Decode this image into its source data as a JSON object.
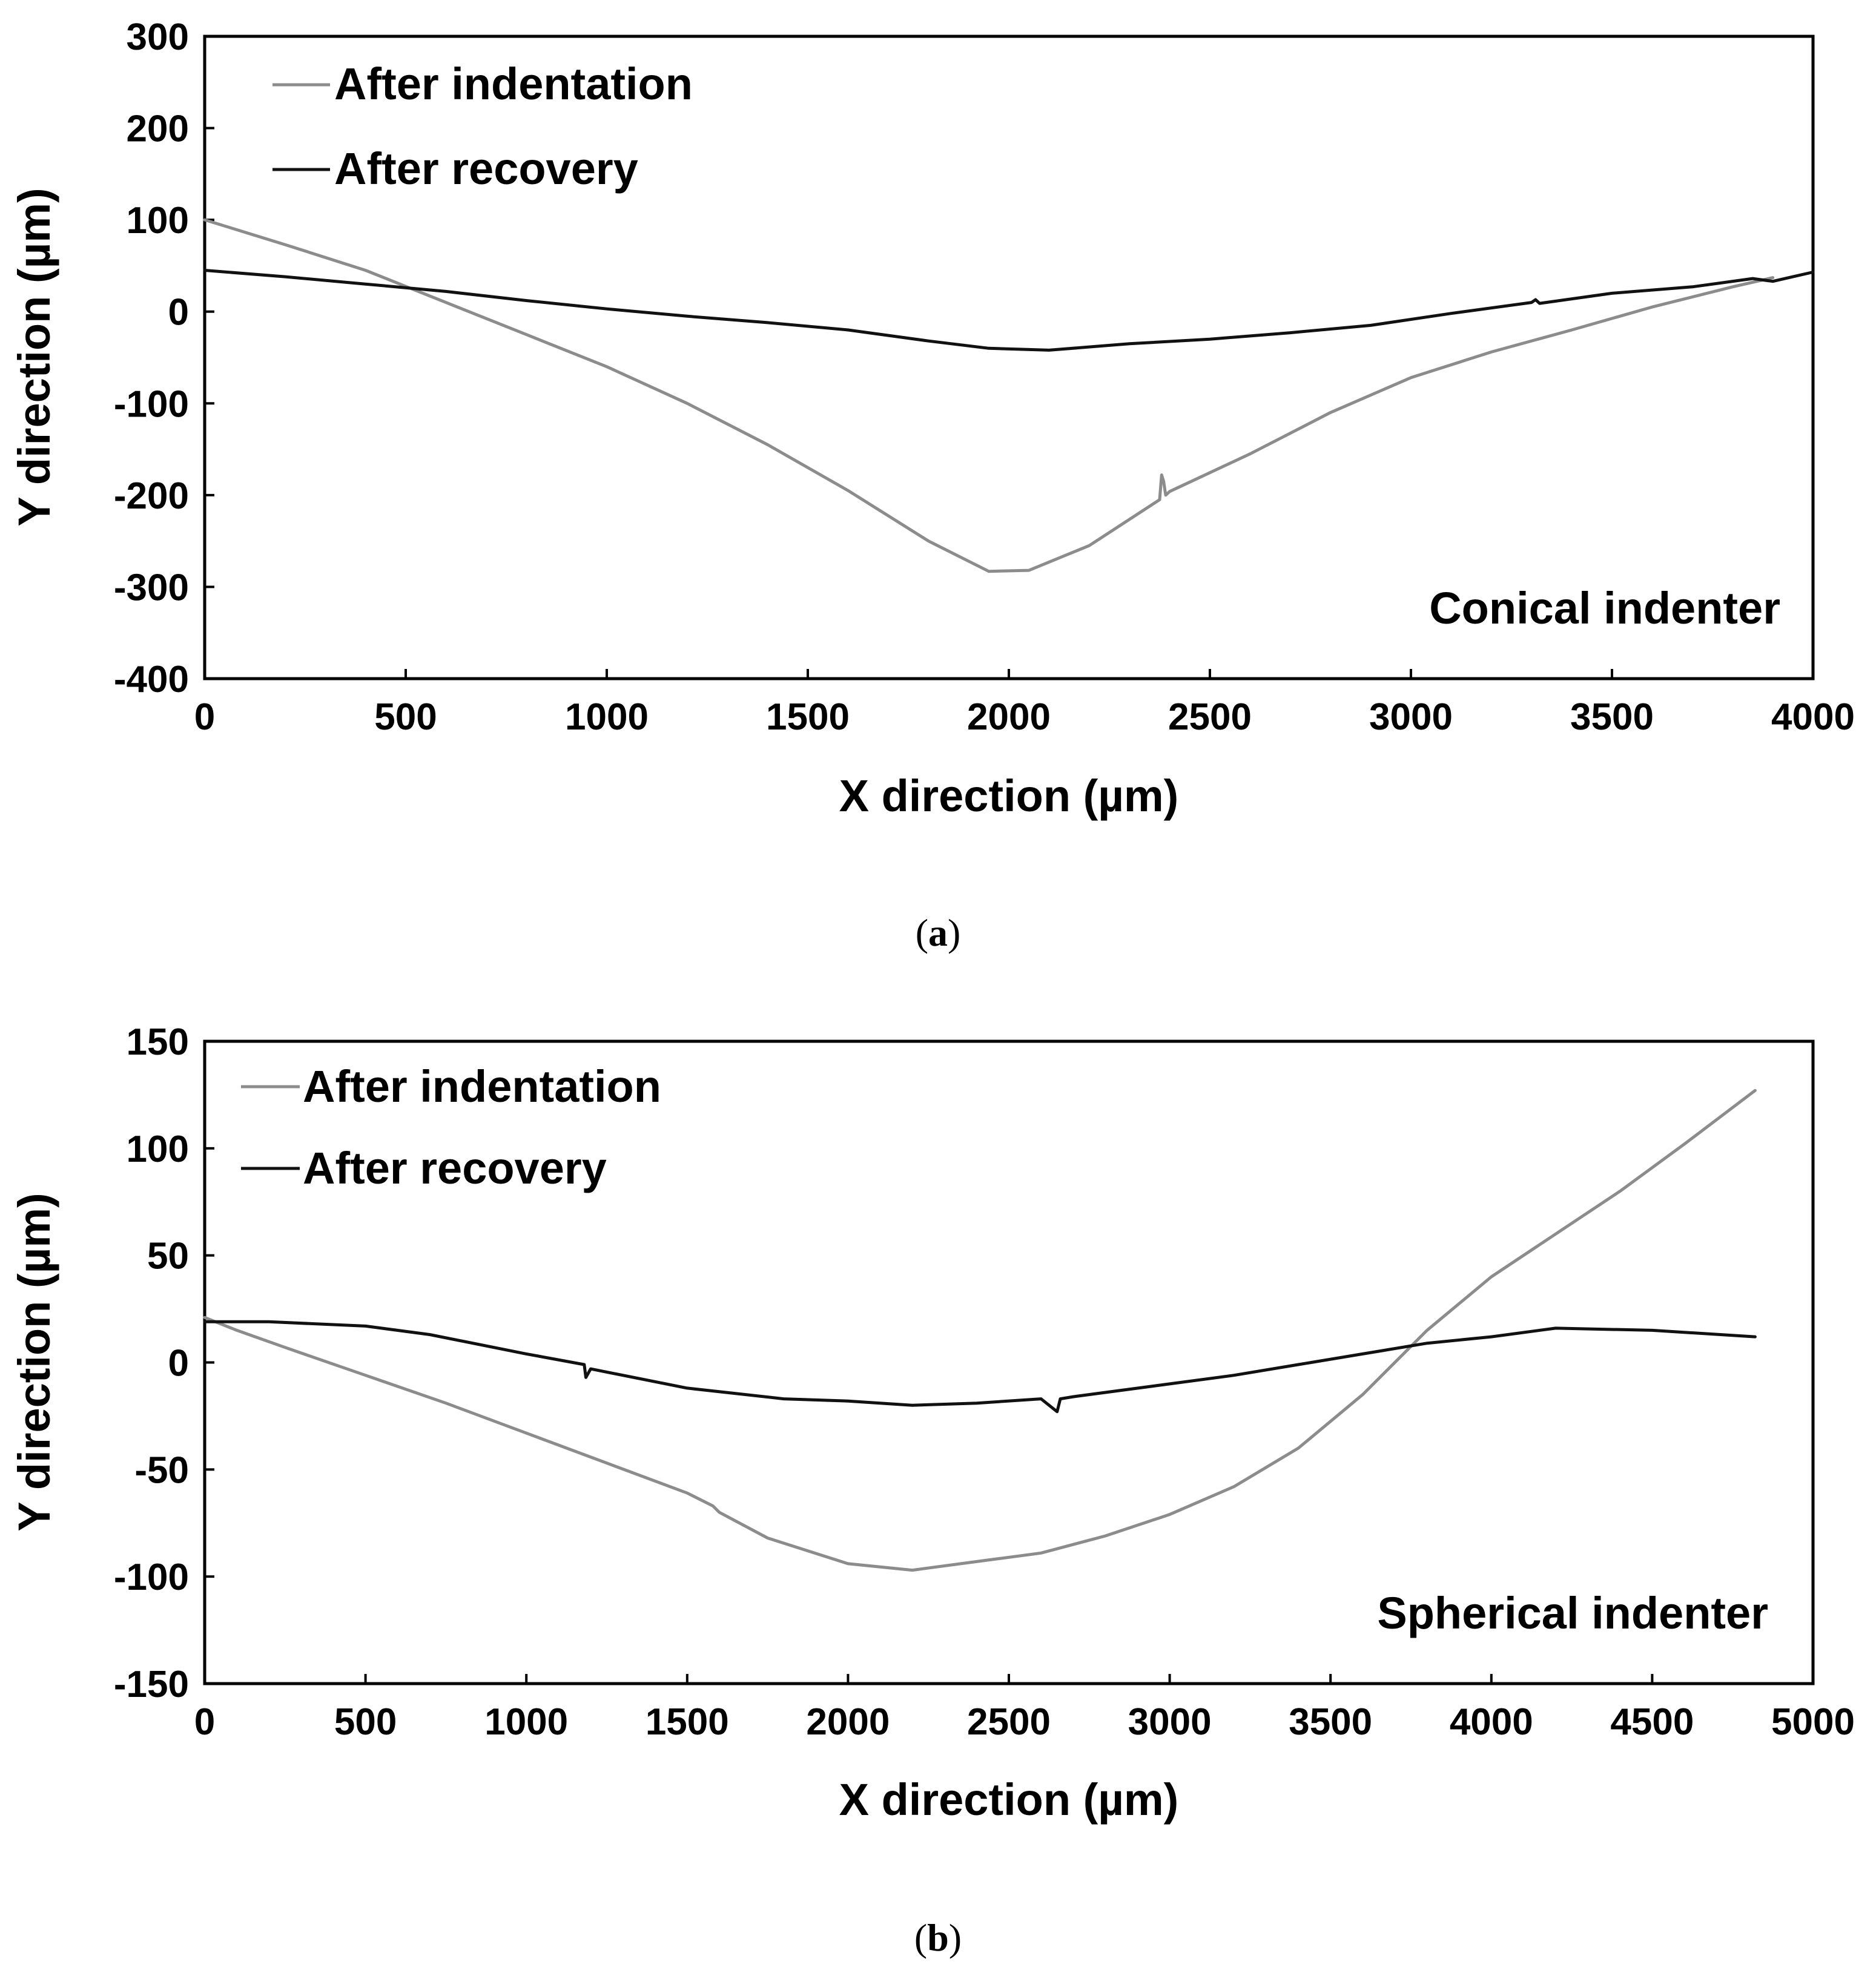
{
  "chart_data": [
    {
      "type": "line",
      "panel_label": "a",
      "caption_open": "(",
      "caption_close": ")",
      "annotation": "Conical indenter",
      "xlabel": "X direction (µm)",
      "ylabel": "Y direction (µm)",
      "xlim": [
        0,
        4000
      ],
      "ylim": [
        -400,
        300
      ],
      "xticks": [
        0,
        500,
        1000,
        1500,
        2000,
        2500,
        3000,
        3500,
        4000
      ],
      "yticks": [
        300,
        200,
        100,
        0,
        -100,
        -200,
        -300,
        -400
      ],
      "grid": false,
      "legend_position": "top-left",
      "series": [
        {
          "name": "After indentation",
          "color": "#8c8c8c",
          "x": [
            0,
            200,
            400,
            600,
            800,
            1000,
            1200,
            1400,
            1600,
            1800,
            1950,
            2050,
            2200,
            2375,
            2380,
            2385,
            2390,
            2400,
            2600,
            2800,
            3000,
            3200,
            3400,
            3600,
            3800,
            3900
          ],
          "y": [
            100,
            73,
            45,
            10,
            -25,
            -60,
            -100,
            -145,
            -195,
            -250,
            -283,
            -282,
            -255,
            -205,
            -178,
            -185,
            -200,
            -196,
            -155,
            -110,
            -72,
            -44,
            -20,
            5,
            27,
            37
          ]
        },
        {
          "name": "After recovery",
          "color": "#111111",
          "x": [
            0,
            200,
            400,
            600,
            800,
            1000,
            1200,
            1400,
            1600,
            1800,
            1950,
            2100,
            2300,
            2500,
            2700,
            2900,
            3100,
            3300,
            3310,
            3320,
            3500,
            3700,
            3850,
            3900,
            3950,
            4000
          ],
          "y": [
            45,
            38,
            30,
            22,
            12,
            3,
            -5,
            -12,
            -20,
            -32,
            -40,
            -42,
            -35,
            -30,
            -23,
            -15,
            -2,
            10,
            13,
            9,
            20,
            27,
            36,
            33,
            38,
            43
          ]
        }
      ]
    },
    {
      "type": "line",
      "panel_label": "b",
      "caption_open": "(",
      "caption_close": ")",
      "annotation": "Spherical indenter",
      "xlabel": "X direction (µm)",
      "ylabel": "Y direction (µm)",
      "xlim": [
        0,
        5000
      ],
      "ylim": [
        -150,
        150
      ],
      "xticks": [
        0,
        500,
        1000,
        1500,
        2000,
        2500,
        3000,
        3500,
        4000,
        4500,
        5000
      ],
      "yticks": [
        150,
        100,
        50,
        0,
        -50,
        -100,
        -150
      ],
      "grid": false,
      "legend_position": "top-left",
      "series": [
        {
          "name": "After indentation",
          "color": "#8c8c8c",
          "x": [
            0,
            100,
            250,
            500,
            750,
            1000,
            1250,
            1500,
            1580,
            1600,
            1750,
            2000,
            2200,
            2400,
            2600,
            2800,
            3000,
            3200,
            3400,
            3600,
            3800,
            4000,
            4200,
            4400,
            4600,
            4820
          ],
          "y": [
            21,
            15,
            7,
            -6,
            -19,
            -33,
            -47,
            -61,
            -67,
            -70,
            -82,
            -94,
            -97,
            -93,
            -89,
            -81,
            -71,
            -58,
            -40,
            -15,
            15,
            40,
            60,
            80,
            102,
            127
          ]
        },
        {
          "name": "After recovery",
          "color": "#111111",
          "x": [
            0,
            200,
            500,
            700,
            1000,
            1180,
            1185,
            1200,
            1500,
            1800,
            2000,
            2200,
            2400,
            2600,
            2650,
            2660,
            2700,
            3000,
            3200,
            3400,
            3600,
            3800,
            4000,
            4200,
            4500,
            4820
          ],
          "y": [
            19,
            19,
            17,
            13,
            4,
            -1,
            -7,
            -3,
            -12,
            -17,
            -18,
            -20,
            -19,
            -17,
            -23,
            -17,
            -16,
            -10,
            -6,
            -1,
            4,
            9,
            12,
            16,
            15,
            12
          ]
        }
      ]
    }
  ]
}
